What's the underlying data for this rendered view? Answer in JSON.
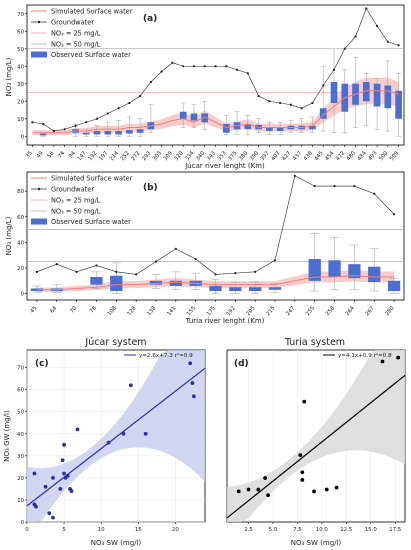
{
  "figure": {
    "panels": [
      "(a)",
      "(b)",
      "(c)",
      "(d)"
    ],
    "titles": {
      "c": "Júcar system",
      "d": "Turia system"
    }
  },
  "legend_ab": {
    "simulated": "Simulated Surface water",
    "groundwater": "Groundwater",
    "no3_25": "NO₃ = 25 mg/L",
    "no3_50": "NO₃ = 50 mg/L",
    "observed": "Observed Surface water"
  },
  "legend_c": "y=2.6x+7.3   r²=0.9",
  "legend_d": "y=4.1x+0.9   r²=0.8",
  "colors": {
    "simulated": "#f08080",
    "simulated_band": "#f7b6b6",
    "groundwater": "#222222",
    "observed": "#4a6fd0",
    "fit_c": "#2b2fa8",
    "band_c": "#c9d0ef",
    "fit_d": "#000000",
    "band_d": "#d9d9d9",
    "threshold": "#999999"
  },
  "chart_data": [
    {
      "type": "box",
      "panel": "(a)",
      "xlabel": "Júcar river lenght  (Km)",
      "ylabel": "NO₃ (mg/L)",
      "ylim": [
        -5,
        75
      ],
      "yticks": [
        0,
        10,
        20,
        30,
        40,
        50,
        60,
        70
      ],
      "categories": [
        "35",
        "49",
        "56",
        "74",
        "94",
        "147",
        "192",
        "197",
        "214",
        "252",
        "272",
        "293",
        "303",
        "309",
        "320",
        "334",
        "340",
        "343",
        "353",
        "375",
        "380",
        "390",
        "397",
        "407",
        "427",
        "437",
        "438",
        "445",
        "454",
        "472",
        "480",
        "484",
        "493",
        "500",
        "509"
      ],
      "groundwater": [
        8,
        7,
        3,
        4,
        6,
        8,
        10,
        13,
        16,
        19,
        23,
        31,
        37,
        42,
        40,
        40,
        40,
        40,
        40,
        38,
        36,
        23,
        20,
        19,
        18,
        16,
        19,
        29,
        38,
        50,
        57,
        73,
        63,
        54,
        52
      ],
      "simulated": [
        2,
        2,
        2,
        2,
        3,
        3,
        4,
        4,
        4,
        5,
        5,
        6,
        7,
        9,
        10,
        8,
        11,
        8,
        5,
        6,
        7,
        5,
        5,
        5,
        5,
        5,
        6,
        12,
        17,
        22,
        24,
        26,
        26,
        26,
        24
      ],
      "observed": [
        {
          "q1": null,
          "median": null,
          "q3": null,
          "min": null,
          "max": null
        },
        {
          "q1": 0.5,
          "median": 1,
          "q3": 1.5,
          "min": 0,
          "max": 2
        },
        {
          "q1": null,
          "median": null,
          "q3": null,
          "min": null,
          "max": null
        },
        {
          "q1": null,
          "median": null,
          "q3": null,
          "min": null,
          "max": null
        },
        {
          "q1": 2,
          "median": 3,
          "q3": 4,
          "min": 0,
          "max": 7
        },
        {
          "q1": 1,
          "median": 1.5,
          "q3": 2,
          "min": 0,
          "max": 4
        },
        {
          "q1": 1,
          "median": 2,
          "q3": 3,
          "min": 0,
          "max": 6
        },
        {
          "q1": 1,
          "median": 2,
          "q3": 3,
          "min": 0,
          "max": 8
        },
        {
          "q1": 1,
          "median": 2,
          "q3": 3,
          "min": 0,
          "max": 9
        },
        {
          "q1": 1.5,
          "median": 2.5,
          "q3": 3.5,
          "min": 0,
          "max": 11
        },
        {
          "q1": 2,
          "median": 3,
          "q3": 4,
          "min": 0,
          "max": 10
        },
        {
          "q1": 4,
          "median": 6,
          "q3": 8,
          "min": 2,
          "max": 18
        },
        {
          "q1": null,
          "median": null,
          "q3": null,
          "min": null,
          "max": null
        },
        {
          "q1": null,
          "median": null,
          "q3": null,
          "min": null,
          "max": null
        },
        {
          "q1": 10,
          "median": 12,
          "q3": 14,
          "min": 5,
          "max": 19
        },
        {
          "q1": 9,
          "median": 11,
          "q3": 13,
          "min": 5,
          "max": 18
        },
        {
          "q1": 8,
          "median": 11,
          "q3": 13,
          "min": 4,
          "max": 20
        },
        {
          "q1": null,
          "median": null,
          "q3": null,
          "min": null,
          "max": null
        },
        {
          "q1": 2,
          "median": 4,
          "q3": 7,
          "min": 1,
          "max": 12
        },
        {
          "q1": 4,
          "median": 6,
          "q3": 8,
          "min": 1,
          "max": 14
        },
        {
          "q1": 4,
          "median": 6,
          "q3": 7,
          "min": 1,
          "max": 12
        },
        {
          "q1": 4,
          "median": 5.5,
          "q3": 6.5,
          "min": 2,
          "max": 10
        },
        {
          "q1": 3,
          "median": 4,
          "q3": 5,
          "min": 1,
          "max": 8
        },
        {
          "q1": 3,
          "median": 4,
          "q3": 5,
          "min": 1,
          "max": 8
        },
        {
          "q1": 4,
          "median": 5,
          "q3": 6,
          "min": 2,
          "max": 9
        },
        {
          "q1": 4,
          "median": 5,
          "q3": 6,
          "min": 2,
          "max": 10
        },
        {
          "q1": 4,
          "median": 5,
          "q3": 6,
          "min": 2,
          "max": 11
        },
        {
          "q1": 10,
          "median": 13,
          "q3": 16,
          "min": 3,
          "max": 40
        },
        {
          "q1": 19,
          "median": 24,
          "q3": 31,
          "min": 2,
          "max": 50
        },
        {
          "q1": 14,
          "median": 20,
          "q3": 30,
          "min": 2,
          "max": 38
        },
        {
          "q1": 18,
          "median": 23,
          "q3": 30,
          "min": 5,
          "max": 45
        },
        {
          "q1": 20,
          "median": 25,
          "q3": 31,
          "min": 6,
          "max": 36
        },
        {
          "q1": 17,
          "median": 23,
          "q3": 30,
          "min": 4,
          "max": 33
        },
        {
          "q1": 16,
          "median": 22,
          "q3": 29,
          "min": 3,
          "max": 43
        },
        {
          "q1": 10,
          "median": 18,
          "q3": 26,
          "min": 0,
          "max": 36
        }
      ]
    },
    {
      "type": "box",
      "panel": "(b)",
      "xlabel": "Turia river lenght  (Km)",
      "ylabel": "NO₃ (mg/L)",
      "ylim": [
        -5,
        95
      ],
      "yticks": [
        0,
        20,
        40,
        60,
        80
      ],
      "categories": [
        "45",
        "64",
        "70",
        "78",
        "108",
        "128",
        "138",
        "141",
        "155",
        "175",
        "192",
        "205",
        "215",
        "247",
        "255",
        "258",
        "264",
        "267",
        "280"
      ],
      "groundwater": [
        17,
        23,
        17,
        22,
        17,
        15,
        25,
        35,
        27,
        15,
        16,
        17,
        26,
        92,
        84,
        84,
        84,
        78,
        62
      ],
      "simulated": [
        3,
        3,
        4,
        5,
        7,
        7,
        8,
        9,
        8,
        7,
        7,
        7,
        7,
        10,
        13,
        13,
        14,
        13,
        13
      ],
      "observed": [
        {
          "q1": 2,
          "median": 3,
          "q3": 4,
          "min": 1,
          "max": 6
        },
        {
          "q1": 2,
          "median": 3,
          "q3": 4,
          "min": 1,
          "max": 7
        },
        {
          "q1": null,
          "median": null,
          "q3": null,
          "min": null,
          "max": null
        },
        {
          "q1": 7,
          "median": 10,
          "q3": 13,
          "min": 4,
          "max": 17
        },
        {
          "q1": 2,
          "median": 8,
          "q3": 14,
          "min": 0,
          "max": 24
        },
        {
          "q1": null,
          "median": null,
          "q3": null,
          "min": null,
          "max": null
        },
        {
          "q1": 7,
          "median": 8,
          "q3": 10,
          "min": 4,
          "max": 15
        },
        {
          "q1": 6,
          "median": 8,
          "q3": 10,
          "min": 3,
          "max": 17
        },
        {
          "q1": 6,
          "median": 8,
          "q3": 10,
          "min": 3,
          "max": 16
        },
        {
          "q1": 2,
          "median": 4,
          "q3": 6,
          "min": 0,
          "max": 11
        },
        {
          "q1": 2,
          "median": 3.5,
          "q3": 5,
          "min": 0,
          "max": 9
        },
        {
          "q1": 2,
          "median": 3.5,
          "q3": 5,
          "min": 0,
          "max": 9
        },
        {
          "q1": 3,
          "median": 4,
          "q3": 5,
          "min": 1,
          "max": 8
        },
        {
          "q1": null,
          "median": null,
          "q3": null,
          "min": null,
          "max": null
        },
        {
          "q1": 10,
          "median": 17,
          "q3": 27,
          "min": 2,
          "max": 47
        },
        {
          "q1": 13,
          "median": 19,
          "q3": 26,
          "min": 3,
          "max": 44
        },
        {
          "q1": 12,
          "median": 17,
          "q3": 23,
          "min": 3,
          "max": 38
        },
        {
          "q1": 9,
          "median": 15,
          "q3": 21,
          "min": 2,
          "max": 35
        },
        {
          "q1": 2,
          "median": 5,
          "q3": 10,
          "min": 0,
          "max": 12
        }
      ]
    },
    {
      "type": "scatter",
      "panel": "(c)",
      "title": "Júcar system",
      "xlabel": "NO₃ SW (mg/l)",
      "ylabel": "NO₃ GW (mg/l)",
      "xlim": [
        0,
        24
      ],
      "ylim": [
        0,
        78
      ],
      "xticks": [
        0,
        5,
        10,
        15,
        20
      ],
      "yticks": [
        0,
        10,
        20,
        30,
        40,
        50,
        60,
        70
      ],
      "fit": {
        "slope": 2.6,
        "intercept": 7.3
      },
      "points": [
        [
          1,
          22
        ],
        [
          1,
          8
        ],
        [
          1.2,
          7
        ],
        [
          2.5,
          16
        ],
        [
          3,
          4
        ],
        [
          3.5,
          2
        ],
        [
          3.5,
          20
        ],
        [
          4.5,
          15
        ],
        [
          4.8,
          28
        ],
        [
          5,
          22
        ],
        [
          5,
          35
        ],
        [
          5.2,
          20
        ],
        [
          5.5,
          21
        ],
        [
          5.8,
          15
        ],
        [
          6,
          14
        ],
        [
          6.8,
          42
        ],
        [
          11,
          36
        ],
        [
          13,
          40
        ],
        [
          14,
          62
        ],
        [
          16,
          40
        ],
        [
          22,
          72
        ],
        [
          22.3,
          63
        ],
        [
          22.5,
          57
        ]
      ]
    },
    {
      "type": "scatter",
      "panel": "(d)",
      "title": "Turia system",
      "xlabel": "NO₃ SW (mg/l)",
      "ylabel": "",
      "xlim": [
        0.3,
        18.5
      ],
      "ylim": [
        0,
        90
      ],
      "xticks": [
        2.5,
        5.0,
        7.5,
        10.0,
        12.5,
        15.0,
        17.5
      ],
      "fit": {
        "slope": 4.1,
        "intercept": 0.9
      },
      "points": [
        [
          1.5,
          16
        ],
        [
          2.5,
          17
        ],
        [
          3.5,
          17
        ],
        [
          4.2,
          23
        ],
        [
          4.5,
          14
        ],
        [
          7.8,
          35
        ],
        [
          8,
          26
        ],
        [
          8,
          22
        ],
        [
          8.2,
          63
        ],
        [
          9.2,
          16
        ],
        [
          10.5,
          17
        ],
        [
          11.5,
          18
        ],
        [
          16.2,
          84
        ],
        [
          17.8,
          86
        ]
      ]
    }
  ]
}
